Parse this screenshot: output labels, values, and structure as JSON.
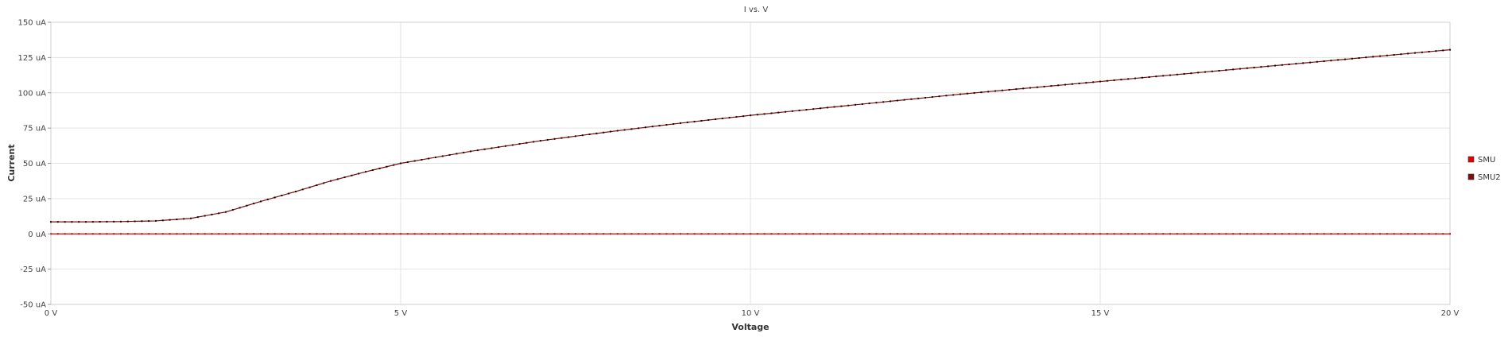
{
  "chart_data": {
    "type": "line",
    "title": "I vs. V",
    "xlabel": "Voltage",
    "ylabel": "Current",
    "xlim": [
      0,
      20
    ],
    "ylim": [
      -50,
      150
    ],
    "x_ticks": [
      {
        "value": 0,
        "label": "0 V"
      },
      {
        "value": 5,
        "label": "5 V"
      },
      {
        "value": 10,
        "label": "10 V"
      },
      {
        "value": 15,
        "label": "15 V"
      },
      {
        "value": 20,
        "label": "20 V"
      }
    ],
    "y_ticks": [
      {
        "value": 150,
        "label": "150 uA"
      },
      {
        "value": 125,
        "label": "125 uA"
      },
      {
        "value": 100,
        "label": "100 uA"
      },
      {
        "value": 75,
        "label": "75 uA"
      },
      {
        "value": 50,
        "label": "50 uA"
      },
      {
        "value": 25,
        "label": "25 uA"
      },
      {
        "value": 0,
        "label": "0 uA"
      },
      {
        "value": -25,
        "label": "-25 uA"
      },
      {
        "value": -50,
        "label": "-50 uA"
      }
    ],
    "grid": true,
    "legend_position": "right",
    "x_step": 0.1,
    "series": [
      {
        "name": "SMU",
        "color": "#e00000",
        "marker_color": "#cc0000",
        "points": [
          [
            0,
            0
          ],
          [
            20,
            0
          ]
        ]
      },
      {
        "name": "SMU2",
        "color": "#7a1010",
        "marker_color": "#1a0000",
        "points": [
          [
            0,
            8.5
          ],
          [
            0.5,
            8.5
          ],
          [
            1.0,
            8.7
          ],
          [
            1.5,
            9.2
          ],
          [
            2.0,
            11.0
          ],
          [
            2.5,
            15.5
          ],
          [
            3.0,
            23.0
          ],
          [
            3.5,
            30.0
          ],
          [
            4.0,
            37.5
          ],
          [
            4.5,
            44.0
          ],
          [
            5.0,
            50.0
          ],
          [
            6.0,
            58.5
          ],
          [
            7.0,
            66.0
          ],
          [
            8.0,
            72.5
          ],
          [
            9.0,
            78.5
          ],
          [
            10.0,
            84.0
          ],
          [
            11.0,
            89.0
          ],
          [
            12.0,
            94.0
          ],
          [
            13.0,
            99.0
          ],
          [
            14.0,
            103.5
          ],
          [
            15.0,
            108.0
          ],
          [
            16.0,
            112.5
          ],
          [
            17.0,
            117.0
          ],
          [
            18.0,
            121.5
          ],
          [
            19.0,
            126.0
          ],
          [
            20.0,
            130.5
          ]
        ]
      }
    ]
  }
}
